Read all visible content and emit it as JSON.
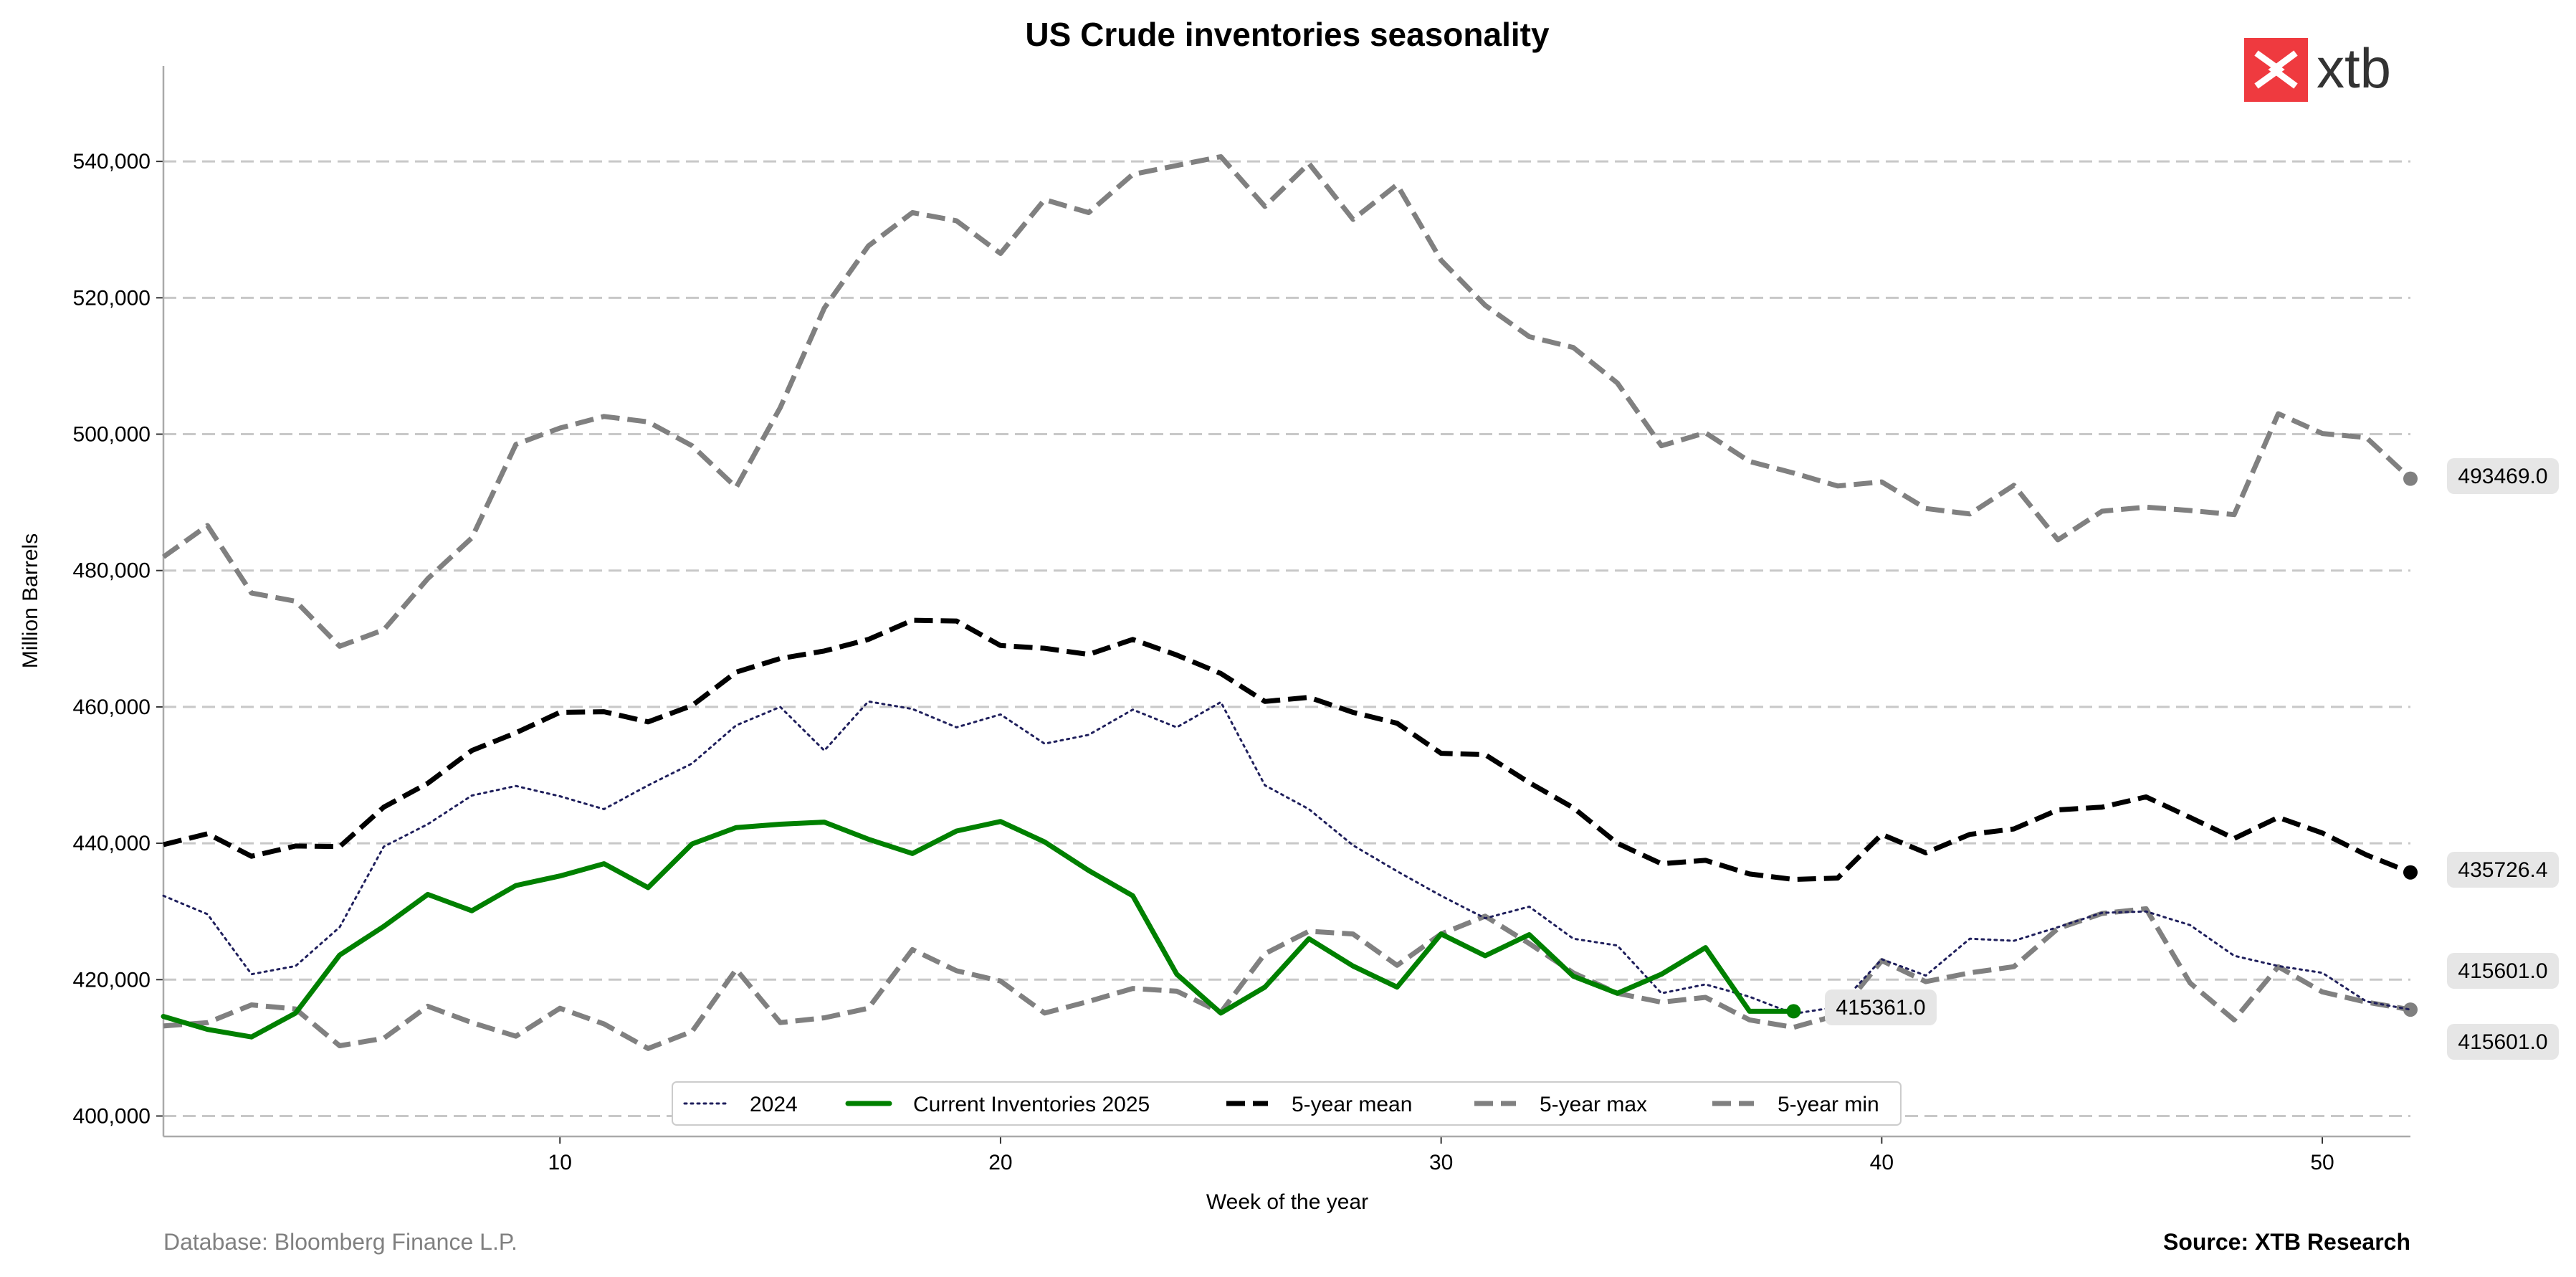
{
  "chart_data": {
    "type": "line",
    "title": "US Crude inventories seasonality",
    "xlabel": "Week of the year",
    "ylabel": "Million Barrels",
    "xlim": [
      1,
      52
    ],
    "ylim": [
      397000,
      554000
    ],
    "x_ticks": [
      10,
      20,
      30,
      40,
      50
    ],
    "y_ticks": [
      400000,
      420000,
      440000,
      460000,
      480000,
      500000,
      520000,
      540000
    ],
    "grid": "horizontal dashed",
    "legend_position": "bottom-center",
    "series": [
      {
        "name": "2024",
        "color": "#1f1f5c",
        "style": "dotted",
        "x_start": 1,
        "values": [
          432300,
          429600,
          420800,
          422000,
          427700,
          439500,
          442800,
          447000,
          448400,
          446900,
          445000,
          448500,
          451700,
          457300,
          460000,
          453600,
          460800,
          459700,
          457000,
          458900,
          454600,
          455900,
          459600,
          457000,
          460700,
          448500,
          445000,
          439700,
          435900,
          432300,
          429000,
          430700,
          426000,
          425000,
          418000,
          419300,
          417500,
          415000,
          416000,
          423000,
          420600,
          426000,
          425700,
          427700,
          429800,
          430000,
          428000,
          423500,
          422000,
          421000,
          416800,
          415601
        ]
      },
      {
        "name": "Current Inventories 2025",
        "color": "#008000",
        "style": "solid",
        "x_start": 1,
        "values": [
          414600,
          412700,
          411600,
          415100,
          423600,
          427800,
          432500,
          430100,
          433800,
          435200,
          437000,
          433500,
          439900,
          442300,
          442800,
          443100,
          440600,
          438500,
          441800,
          443200,
          440200,
          436000,
          432300,
          420800,
          415100,
          418900,
          426000,
          422000,
          418900,
          426700,
          423500,
          426600,
          420500,
          418000,
          420800,
          424700,
          415361,
          415361
        ],
        "end_value": "415361.0"
      },
      {
        "name": "5-year mean",
        "color": "#000000",
        "style": "dashed",
        "x_start": 1,
        "values": [
          439800,
          441400,
          438100,
          439600,
          439500,
          445300,
          448800,
          453600,
          456200,
          459200,
          459300,
          457800,
          460200,
          465100,
          467100,
          468200,
          469900,
          472700,
          472600,
          469000,
          468600,
          467700,
          469900,
          467600,
          464900,
          460800,
          461400,
          459200,
          457600,
          453200,
          453000,
          448900,
          445200,
          440000,
          437000,
          437500,
          435500,
          434700,
          434900,
          441300,
          438600,
          441300,
          442100,
          444900,
          445300,
          446800,
          443800,
          440700,
          443800,
          441500,
          438300,
          435726
        ],
        "end_value": "435726.4"
      },
      {
        "name": "5-year max",
        "color": "#808080",
        "style": "dashed",
        "x_start": 1,
        "values": [
          482000,
          486600,
          476700,
          475500,
          468900,
          471300,
          478800,
          484800,
          498500,
          500900,
          502600,
          501800,
          498300,
          492200,
          503900,
          518500,
          527600,
          532500,
          531300,
          526500,
          534400,
          532500,
          538100,
          539400,
          540700,
          533400,
          539700,
          531500,
          536600,
          525500,
          518900,
          514300,
          512700,
          507500,
          498300,
          500200,
          496000,
          494300,
          492400,
          493000,
          489100,
          488300,
          492500,
          484500,
          488700,
          489300,
          488800,
          488200,
          503000,
          500100,
          499500,
          493469
        ],
        "end_value": "493469.0"
      },
      {
        "name": "5-year min",
        "color": "#808080",
        "style": "dashed",
        "x_start": 1,
        "values": [
          413200,
          413700,
          416300,
          415700,
          410300,
          411400,
          416100,
          413700,
          411700,
          415800,
          413500,
          409900,
          412400,
          421500,
          413700,
          414400,
          415800,
          424400,
          421300,
          419800,
          415100,
          416800,
          418700,
          418300,
          415200,
          423800,
          427100,
          426700,
          422100,
          426700,
          429300,
          425300,
          421000,
          418000,
          416700,
          417400,
          414100,
          413000,
          414800,
          422800,
          419700,
          421000,
          421900,
          427500,
          429700,
          430400,
          419500,
          414100,
          421900,
          418200,
          416700,
          415601
        ],
        "end_value": "415601.0"
      }
    ],
    "end_labels": [
      "493469.0",
      "435726.4",
      "415601.0",
      "415601.0",
      "415361.0"
    ]
  },
  "footer": {
    "database": "Database: Bloomberg Finance L.P.",
    "source": "Source: XTB Research"
  },
  "logo": {
    "text": "xtb",
    "color": "#ef3a3f"
  }
}
